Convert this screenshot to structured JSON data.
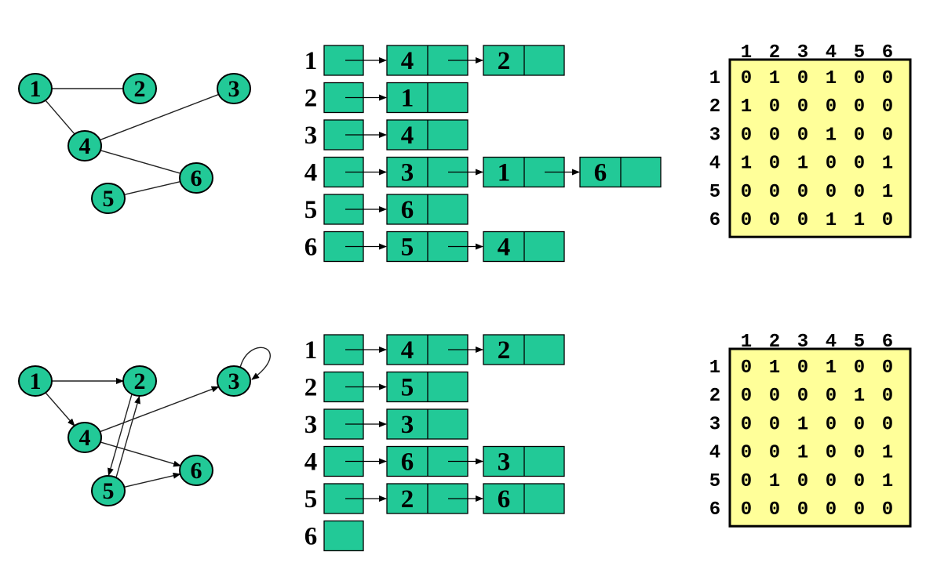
{
  "colors": {
    "node_fill": "#22c997",
    "list_fill": "#22c997",
    "matrix_fill": "#ffff99",
    "stroke": "#000000"
  },
  "sections": [
    {
      "id": "undirected",
      "directed": false,
      "nodes": [
        "1",
        "2",
        "3",
        "4",
        "5",
        "6"
      ],
      "edges": [
        [
          "1",
          "2"
        ],
        [
          "1",
          "4"
        ],
        [
          "3",
          "4"
        ],
        [
          "4",
          "6"
        ],
        [
          "5",
          "6"
        ]
      ],
      "adjacency_list": [
        {
          "head": "1",
          "values": [
            "4",
            "2"
          ]
        },
        {
          "head": "2",
          "values": [
            "1"
          ]
        },
        {
          "head": "3",
          "values": [
            "4"
          ]
        },
        {
          "head": "4",
          "values": [
            "3",
            "1",
            "6"
          ]
        },
        {
          "head": "5",
          "values": [
            "6"
          ]
        },
        {
          "head": "6",
          "values": [
            "5",
            "4"
          ]
        }
      ],
      "matrix": {
        "col_headers": [
          "1",
          "2",
          "3",
          "4",
          "5",
          "6"
        ],
        "row_headers": [
          "1",
          "2",
          "3",
          "4",
          "5",
          "6"
        ],
        "rows": [
          [
            "0",
            "1",
            "0",
            "1",
            "0",
            "0"
          ],
          [
            "1",
            "0",
            "0",
            "0",
            "0",
            "0"
          ],
          [
            "0",
            "0",
            "0",
            "1",
            "0",
            "0"
          ],
          [
            "1",
            "0",
            "1",
            "0",
            "0",
            "1"
          ],
          [
            "0",
            "0",
            "0",
            "0",
            "0",
            "1"
          ],
          [
            "0",
            "0",
            "0",
            "1",
            "1",
            "0"
          ]
        ]
      }
    },
    {
      "id": "directed",
      "directed": true,
      "nodes": [
        "1",
        "2",
        "3",
        "4",
        "5",
        "6"
      ],
      "edges": [
        [
          "1",
          "2"
        ],
        [
          "1",
          "4"
        ],
        [
          "4",
          "3"
        ],
        [
          "4",
          "6"
        ],
        [
          "2",
          "5"
        ],
        [
          "5",
          "2"
        ],
        [
          "5",
          "6"
        ],
        [
          "3",
          "3"
        ]
      ],
      "adjacency_list": [
        {
          "head": "1",
          "values": [
            "4",
            "2"
          ]
        },
        {
          "head": "2",
          "values": [
            "5"
          ]
        },
        {
          "head": "3",
          "values": [
            "3"
          ]
        },
        {
          "head": "4",
          "values": [
            "6",
            "3"
          ]
        },
        {
          "head": "5",
          "values": [
            "2",
            "6"
          ]
        },
        {
          "head": "6",
          "values": []
        }
      ],
      "matrix": {
        "col_headers": [
          "1",
          "2",
          "3",
          "4",
          "5",
          "6"
        ],
        "row_headers": [
          "1",
          "2",
          "3",
          "4",
          "5",
          "6"
        ],
        "rows": [
          [
            "0",
            "1",
            "0",
            "1",
            "0",
            "0"
          ],
          [
            "0",
            "0",
            "0",
            "0",
            "1",
            "0"
          ],
          [
            "0",
            "0",
            "1",
            "0",
            "0",
            "0"
          ],
          [
            "0",
            "0",
            "1",
            "0",
            "0",
            "1"
          ],
          [
            "0",
            "1",
            "0",
            "0",
            "0",
            "1"
          ],
          [
            "0",
            "0",
            "0",
            "0",
            "0",
            "0"
          ]
        ]
      }
    }
  ]
}
